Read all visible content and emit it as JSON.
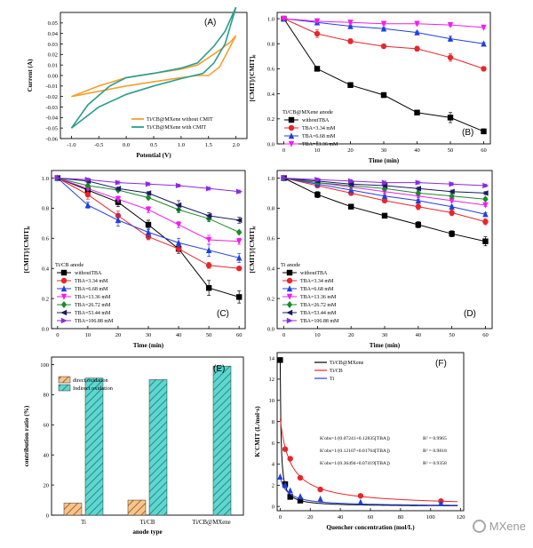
{
  "watermark": {
    "text": "MXene",
    "icon": "mxene-logo-icon"
  },
  "colors": {
    "black": "#000000",
    "red": "#e8262a",
    "blue": "#1f3fe0",
    "magenta": "#f01ef0",
    "green": "#1a8a2a",
    "navy": "#1a1a60",
    "purple": "#8a2be2",
    "orange": "#f5a030",
    "teal": "#2a9d8f",
    "hatchOrange": "#d98228",
    "hatchTeal": "#38c8c0"
  },
  "chart_data": [
    {
      "id": "A",
      "type": "line",
      "panel_label": "(A)",
      "xlabel": "Potential (V)",
      "ylabel": "Current (A)",
      "xlim": [
        -1.2,
        2.2
      ],
      "ylim": [
        -0.06,
        0.06
      ],
      "xticks": [
        "-1.0",
        "-0.5",
        "0.0",
        "0.5",
        "1.0",
        "1.5",
        "2.0"
      ],
      "yticks": [
        "0.05",
        "0.04",
        "0.03",
        "0.02",
        "0.01",
        "0.00",
        "-0.01",
        "-0.02",
        "-0.03",
        "-0.04",
        "-0.05",
        "-0.06"
      ],
      "legend": [
        "Ti/CB@MXene without CMIT",
        "Ti/CB@MXene with CMIT"
      ],
      "series": [
        {
          "name": "Ti/CB@MXene without CMIT",
          "color": "#f5a030",
          "upper": [
            [
              -1.0,
              -0.02
            ],
            [
              -0.5,
              -0.01
            ],
            [
              0.0,
              -0.002
            ],
            [
              0.5,
              0.002
            ],
            [
              1.0,
              0.006
            ],
            [
              1.3,
              0.01
            ],
            [
              1.5,
              0.017
            ],
            [
              1.7,
              0.024
            ],
            [
              1.9,
              0.032
            ],
            [
              2.0,
              0.038
            ]
          ],
          "lower": [
            [
              -1.0,
              -0.02
            ],
            [
              -0.5,
              -0.015
            ],
            [
              0.0,
              -0.01
            ],
            [
              0.5,
              -0.006
            ],
            [
              1.0,
              -0.002
            ],
            [
              1.3,
              0.0
            ],
            [
              1.5,
              0.0
            ],
            [
              1.7,
              0.008
            ],
            [
              1.9,
              0.028
            ],
            [
              2.0,
              0.038
            ]
          ]
        },
        {
          "name": "Ti/CB@MXene with CMIT",
          "color": "#2a9d8f",
          "upper": [
            [
              -1.0,
              -0.05
            ],
            [
              -0.7,
              -0.028
            ],
            [
              -0.3,
              -0.01
            ],
            [
              0.0,
              -0.002
            ],
            [
              0.5,
              0.002
            ],
            [
              1.0,
              0.007
            ],
            [
              1.3,
              0.012
            ],
            [
              1.6,
              0.028
            ],
            [
              1.8,
              0.042
            ],
            [
              2.0,
              0.065
            ]
          ],
          "lower": [
            [
              -1.0,
              -0.05
            ],
            [
              -0.5,
              -0.03
            ],
            [
              0.0,
              -0.018
            ],
            [
              0.5,
              -0.01
            ],
            [
              1.0,
              -0.003
            ],
            [
              1.4,
              0.002
            ],
            [
              1.6,
              0.012
            ],
            [
              1.8,
              0.03
            ],
            [
              2.0,
              0.065
            ]
          ]
        }
      ]
    },
    {
      "id": "B",
      "type": "line",
      "panel_label": "(B)",
      "legend_title": "Ti/CB@MXene anode",
      "xlabel": "Time (min)",
      "ylabel": "[CMIT]/[CMIT]₀",
      "xlim": [
        -2,
        62
      ],
      "ylim": [
        0,
        1.05
      ],
      "xticks": [
        "0",
        "10",
        "20",
        "30",
        "40",
        "50",
        "60"
      ],
      "yticks": [
        "0.0",
        "0.2",
        "0.4",
        "0.6",
        "0.8",
        "1.0"
      ],
      "x": [
        0,
        10,
        20,
        30,
        40,
        50,
        60
      ],
      "series": [
        {
          "name": "withoutTBA",
          "color": "#000000",
          "marker": "square",
          "values": [
            1.0,
            0.6,
            0.47,
            0.39,
            0.25,
            0.21,
            0.1
          ],
          "err": [
            0,
            0.01,
            0.02,
            0.02,
            0.01,
            0.04,
            0.02
          ]
        },
        {
          "name": "TBA=3.34 mM",
          "color": "#e8262a",
          "marker": "circle",
          "values": [
            1.0,
            0.88,
            0.82,
            0.78,
            0.76,
            0.69,
            0.6
          ],
          "err": [
            0,
            0.03,
            0.02,
            0.01,
            0.02,
            0.03,
            0.01
          ]
        },
        {
          "name": "TBA=6.68 mM",
          "color": "#1f3fe0",
          "marker": "triangle",
          "values": [
            1.0,
            0.97,
            0.94,
            0.92,
            0.89,
            0.84,
            0.8
          ],
          "err": [
            0,
            0.01,
            0.01,
            0.01,
            0.01,
            0.02,
            0.01
          ]
        },
        {
          "name": "TBA=13.36 mM",
          "color": "#f01ef0",
          "marker": "tri-down",
          "values": [
            1.0,
            0.98,
            0.97,
            0.96,
            0.96,
            0.95,
            0.93
          ],
          "err": [
            0,
            0.01,
            0.01,
            0.01,
            0.01,
            0.01,
            0.01
          ]
        }
      ]
    },
    {
      "id": "C",
      "type": "line",
      "panel_label": "(C)",
      "legend_title": "Ti/CB anode",
      "xlabel": "Time (min)",
      "ylabel": "[CMIT]/[CMIT]₀",
      "xlim": [
        -2,
        62
      ],
      "ylim": [
        0,
        1.05
      ],
      "xticks": [
        "0",
        "10",
        "20",
        "30",
        "40",
        "50",
        "60"
      ],
      "yticks": [
        "0.0",
        "0.2",
        "0.4",
        "0.6",
        "0.8",
        "1.0"
      ],
      "x": [
        0,
        10,
        20,
        30,
        40,
        50,
        60
      ],
      "series": [
        {
          "name": "withoutTBA",
          "color": "#000000",
          "marker": "square",
          "values": [
            1.0,
            0.92,
            0.84,
            0.69,
            0.53,
            0.27,
            0.21
          ],
          "err": [
            0,
            0.02,
            0.03,
            0.03,
            0.03,
            0.05,
            0.04
          ]
        },
        {
          "name": "TBA=3.34 mM",
          "color": "#e8262a",
          "marker": "circle",
          "values": [
            1.0,
            0.89,
            0.75,
            0.61,
            0.53,
            0.42,
            0.4
          ],
          "err": [
            0,
            0.03,
            0.03,
            0.02,
            0.02,
            0.02,
            0.01
          ]
        },
        {
          "name": "TBA=6.68 mM",
          "color": "#1f3fe0",
          "marker": "triangle",
          "values": [
            1.0,
            0.82,
            0.72,
            0.64,
            0.57,
            0.52,
            0.47
          ],
          "err": [
            0,
            0.02,
            0.04,
            0.03,
            0.03,
            0.04,
            0.03
          ]
        },
        {
          "name": "TBA=13.36 mM",
          "color": "#f01ef0",
          "marker": "tri-down",
          "values": [
            1.0,
            0.93,
            0.86,
            0.79,
            0.69,
            0.59,
            0.58
          ],
          "err": [
            0,
            0.01,
            0.02,
            0.02,
            0.02,
            0.03,
            0.02
          ]
        },
        {
          "name": "TBA=26.72 mM",
          "color": "#1a8a2a",
          "marker": "diamond",
          "values": [
            1.0,
            0.95,
            0.92,
            0.87,
            0.79,
            0.73,
            0.64
          ],
          "err": [
            0,
            0.01,
            0.01,
            0.01,
            0.02,
            0.02,
            0.01
          ]
        },
        {
          "name": "TBA=53.44 mM",
          "color": "#1a1a60",
          "marker": "tri-left",
          "values": [
            1.0,
            0.98,
            0.93,
            0.9,
            0.82,
            0.75,
            0.72
          ],
          "err": [
            0,
            0.01,
            0.01,
            0.01,
            0.03,
            0.02,
            0.02
          ]
        },
        {
          "name": "TBA=106.88 mM",
          "color": "#8a2be2",
          "marker": "tri-right",
          "values": [
            1.0,
            0.99,
            0.97,
            0.96,
            0.95,
            0.93,
            0.91
          ],
          "err": [
            0,
            0.01,
            0.01,
            0.01,
            0.01,
            0.01,
            0.01
          ]
        }
      ]
    },
    {
      "id": "D",
      "type": "line",
      "panel_label": "(D)",
      "legend_title": "Ti anode",
      "xlabel": "Time (min)",
      "ylabel": "[CMIT]/[CMIT]₀",
      "xlim": [
        -2,
        62
      ],
      "ylim": [
        0,
        1.05
      ],
      "xticks": [
        "0",
        "10",
        "20",
        "30",
        "40",
        "50",
        "60"
      ],
      "yticks": [
        "0.0",
        "0.2",
        "0.4",
        "0.6",
        "0.8",
        "1.0"
      ],
      "x": [
        0,
        10,
        20,
        30,
        40,
        50,
        60
      ],
      "series": [
        {
          "name": "withoutTBA",
          "color": "#000000",
          "marker": "square",
          "values": [
            1.0,
            0.89,
            0.81,
            0.75,
            0.69,
            0.63,
            0.58
          ],
          "err": [
            0,
            0.02,
            0.01,
            0.01,
            0.02,
            0.02,
            0.03
          ]
        },
        {
          "name": "TBA=3.34 mM",
          "color": "#e8262a",
          "marker": "circle",
          "values": [
            1.0,
            0.95,
            0.9,
            0.85,
            0.81,
            0.77,
            0.71
          ],
          "err": [
            0,
            0.01,
            0.01,
            0.01,
            0.02,
            0.02,
            0.02
          ]
        },
        {
          "name": "TBA=6.68 mM",
          "color": "#1f3fe0",
          "marker": "triangle",
          "values": [
            1.0,
            0.96,
            0.92,
            0.88,
            0.85,
            0.81,
            0.76
          ],
          "err": [
            0,
            0.01,
            0.01,
            0.01,
            0.01,
            0.01,
            0.01
          ]
        },
        {
          "name": "TBA=13.36 mM",
          "color": "#f01ef0",
          "marker": "tri-down",
          "values": [
            1.0,
            0.97,
            0.94,
            0.91,
            0.88,
            0.85,
            0.82
          ],
          "err": [
            0,
            0.01,
            0.01,
            0.01,
            0.01,
            0.01,
            0.01
          ]
        },
        {
          "name": "TBA=26.72 mM",
          "color": "#1a8a2a",
          "marker": "diamond",
          "values": [
            1.0,
            0.97,
            0.95,
            0.93,
            0.9,
            0.88,
            0.86
          ],
          "err": [
            0,
            0.01,
            0.01,
            0.01,
            0.01,
            0.01,
            0.01
          ]
        },
        {
          "name": "TBA=53.44 mM",
          "color": "#1a1a60",
          "marker": "tri-left",
          "values": [
            1.0,
            0.98,
            0.96,
            0.95,
            0.93,
            0.91,
            0.9
          ],
          "err": [
            0,
            0.01,
            0.01,
            0.01,
            0.01,
            0.01,
            0.01
          ]
        },
        {
          "name": "TBA=106.88 mM",
          "color": "#8a2be2",
          "marker": "tri-right",
          "values": [
            1.0,
            0.99,
            0.98,
            0.97,
            0.97,
            0.96,
            0.95
          ],
          "err": [
            0,
            0.01,
            0.01,
            0.01,
            0.01,
            0.01,
            0.01
          ]
        }
      ]
    },
    {
      "id": "E",
      "type": "bar",
      "panel_label": "(E)",
      "xlabel": "anode type",
      "ylabel": "contribution ratio (%)",
      "ylim": [
        0,
        105
      ],
      "yticks": [
        "0",
        "20",
        "40",
        "60",
        "80",
        "100"
      ],
      "categories": [
        "Ti",
        "Ti/CB",
        "Ti/CB@MXene"
      ],
      "series": [
        {
          "name": "direct oxidation",
          "color": "#d98228",
          "values": [
            8,
            10,
            0
          ]
        },
        {
          "name": "Indirect oxidation",
          "color": "#38c8c0",
          "values": [
            91,
            90,
            99
          ]
        }
      ]
    },
    {
      "id": "F",
      "type": "scatter",
      "panel_label": "(F)",
      "xlabel": "Quencher concentration (mol/L)",
      "ylabel": "K′CMIT (L/mol·s)",
      "xlim": [
        -2,
        122
      ],
      "ylim": [
        -0.4,
        14.5
      ],
      "xticks": [
        "0",
        "20",
        "40",
        "60",
        "80",
        "100",
        "120"
      ],
      "yticks": [
        "0",
        "2",
        "4",
        "6",
        "8",
        "10",
        "12",
        "14"
      ],
      "annotations": [
        {
          "eq": "K′obs=1/(0.07241+0.12835[TBA])",
          "r2": "R² = 0.9965"
        },
        {
          "eq": "K′obs=1/(0.12107+0.01764[TBA])",
          "r2": "R² = 0.9818"
        },
        {
          "eq": "K′obs=1/(0.36494+0.07419[TBA])",
          "r2": "R² = 0.9358"
        }
      ],
      "series": [
        {
          "name": "Ti/CB@MXene",
          "color": "#000000",
          "marker": "square",
          "x": [
            0,
            3.34,
            6.68,
            13.36
          ],
          "values": [
            13.8,
            2.1,
            0.9,
            0.55
          ],
          "fit": [
            0.07241,
            0.12835
          ]
        },
        {
          "name": "Ti/CB",
          "color": "#e8262a",
          "marker": "circle",
          "x": [
            3.34,
            6.68,
            13.36,
            26.72,
            53.44,
            106.88
          ],
          "values": [
            5.4,
            4.5,
            2.7,
            1.6,
            1.0,
            0.5
          ],
          "fit": [
            0.12107,
            0.01764
          ]
        },
        {
          "name": "Ti",
          "color": "#1f3fe0",
          "marker": "triangle",
          "x": [
            0,
            3.34,
            6.68,
            13.36,
            26.72,
            53.44,
            106.88
          ],
          "values": [
            2.8,
            2.0,
            1.5,
            0.95,
            0.7,
            0.4,
            0.3
          ],
          "fit": [
            0.36494,
            0.07419
          ]
        }
      ]
    }
  ]
}
